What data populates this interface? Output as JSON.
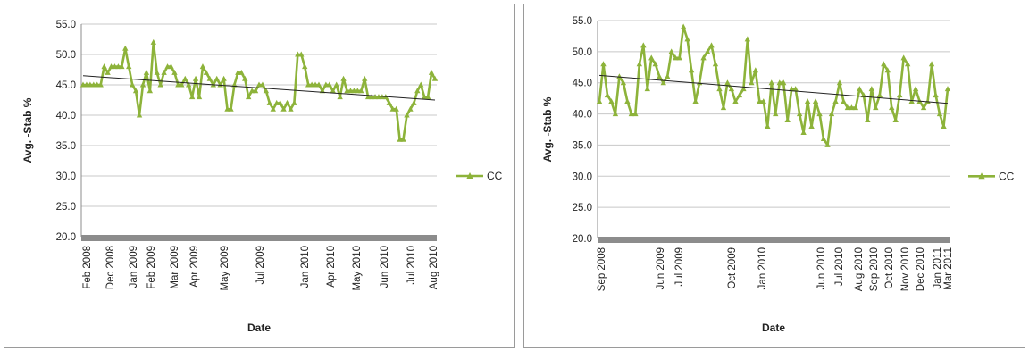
{
  "colors": {
    "series": "#8DB33A",
    "trend": "#222222",
    "axis": "#8C8C8C",
    "grid": "#C8C8C8"
  },
  "chart_data": [
    {
      "type": "line",
      "xlabel": "Date",
      "ylabel": "Avg. -Stab %",
      "ylim": [
        20,
        55
      ],
      "y_ticks": [
        "20.0",
        "25.0",
        "30.0",
        "35.0",
        "40.0",
        "45.0",
        "50.0",
        "55.0"
      ],
      "x_ticks": [
        "Feb 2008",
        "Dec 2008",
        "Jan 2009",
        "Feb 2009",
        "Mar 2009",
        "Apr 2009",
        "May 2009",
        "Jul 2009",
        "Jan 2010",
        "Apr 2010",
        "May 2010",
        "Jun 2010",
        "Jul 2010",
        "Aug 2010"
      ],
      "grid": "horizontal",
      "legend_position": "right",
      "series": [
        {
          "name": "CC",
          "trendline": [
            46.5,
            42.5
          ],
          "values": [
            45,
            45,
            45,
            45,
            45,
            45,
            48,
            47,
            48,
            48,
            48,
            48,
            51,
            48,
            45,
            44,
            40,
            45,
            47,
            44,
            52,
            47,
            45,
            47,
            48,
            48,
            47,
            45,
            45,
            46,
            45,
            43,
            46,
            43,
            48,
            47,
            46,
            45,
            46,
            45,
            46,
            41,
            41,
            45,
            47,
            47,
            46,
            43,
            44,
            44,
            45,
            45,
            44,
            42,
            41,
            42,
            42,
            41,
            42,
            41,
            42,
            50,
            50,
            48,
            45,
            45,
            45,
            45,
            44,
            45,
            45,
            44,
            45,
            43,
            46,
            44,
            44,
            44,
            44,
            44,
            46,
            43,
            43,
            43,
            43,
            43,
            43,
            42,
            41,
            41,
            36,
            36,
            40,
            41,
            42,
            44,
            45,
            43,
            43,
            47,
            46
          ]
        }
      ]
    },
    {
      "type": "line",
      "xlabel": "Date",
      "ylabel": "Avg. -Stab %",
      "ylim": [
        20,
        55
      ],
      "y_ticks": [
        "20.0",
        "25.0",
        "30.0",
        "35.0",
        "40.0",
        "45.0",
        "50.0",
        "55.0"
      ],
      "x_ticks": [
        "Sep 2008",
        "Jun 2009",
        "Jul 2009",
        "Oct 2009",
        "Jan 2010",
        "Jun 2010",
        "Jul 2010",
        "Aug 2010",
        "Sep 2010",
        "Oct 2010",
        "Nov 2010",
        "Dec 2010",
        "Jan 2011",
        "Mar 2011"
      ],
      "grid": "horizontal",
      "legend_position": "right",
      "series": [
        {
          "name": "CC",
          "trendline": [
            46.2,
            41.7
          ],
          "values": [
            42,
            48,
            43,
            42,
            40,
            46,
            45,
            42,
            40,
            40,
            48,
            51,
            44,
            49,
            48,
            46,
            45,
            46,
            50,
            49,
            49,
            54,
            52,
            47,
            42,
            45,
            49,
            50,
            51,
            48,
            44,
            41,
            45,
            44,
            42,
            43,
            44,
            52,
            45,
            47,
            42,
            42,
            38,
            45,
            40,
            45,
            45,
            39,
            44,
            44,
            40,
            37,
            42,
            38,
            42,
            40,
            36,
            35,
            40,
            42,
            45,
            42,
            41,
            41,
            41,
            44,
            43,
            39,
            44,
            41,
            43,
            48,
            47,
            41,
            39,
            43,
            49,
            48,
            42,
            44,
            42,
            41,
            42,
            48,
            43,
            40,
            38,
            44
          ]
        }
      ]
    }
  ]
}
